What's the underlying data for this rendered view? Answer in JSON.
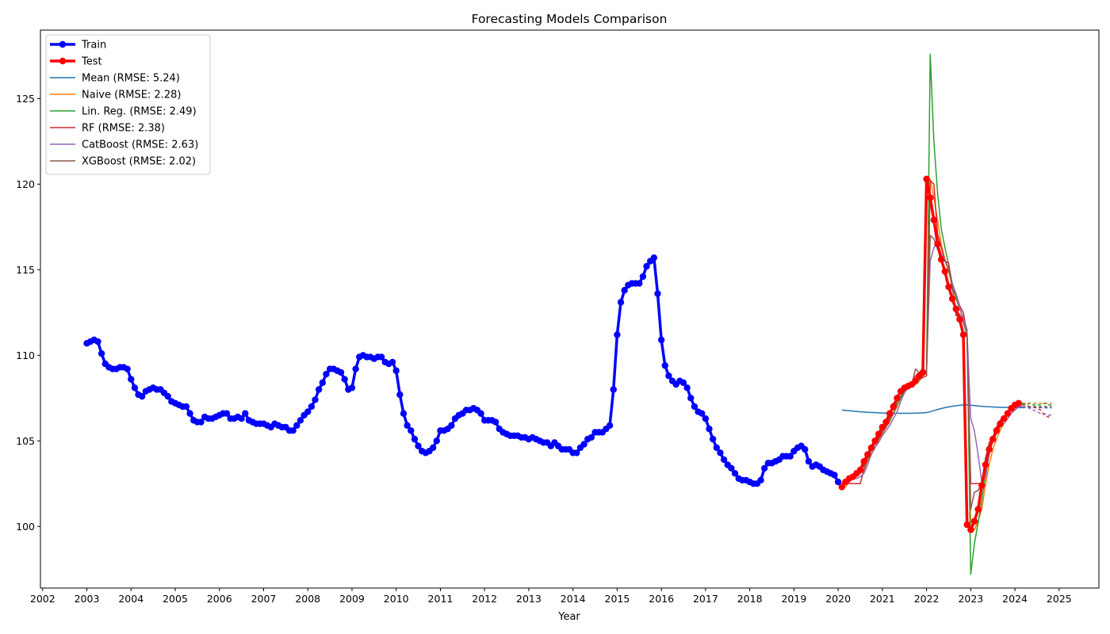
{
  "chart_data": {
    "type": "line",
    "title": "Forecasting Models Comparison",
    "xlabel": "Year",
    "ylabel": "",
    "xlim": [
      2001.95,
      2025.9
    ],
    "ylim": [
      96.4,
      129.0
    ],
    "x_ticks": [
      2002,
      2003,
      2004,
      2005,
      2006,
      2007,
      2008,
      2009,
      2010,
      2011,
      2012,
      2013,
      2014,
      2015,
      2016,
      2017,
      2018,
      2019,
      2020,
      2021,
      2022,
      2023,
      2024,
      2025
    ],
    "y_ticks": [
      100,
      105,
      110,
      115,
      120,
      125
    ],
    "grid": false,
    "legend_position": "top-left",
    "train": {
      "name": "Train",
      "color": "#0000ff",
      "x_start": 2003.0,
      "step": 0.08333,
      "values": [
        110.7,
        110.8,
        110.9,
        110.8,
        110.1,
        109.5,
        109.3,
        109.2,
        109.2,
        109.3,
        109.3,
        109.2,
        108.6,
        108.1,
        107.7,
        107.6,
        107.9,
        108.0,
        108.1,
        108.0,
        108.0,
        107.8,
        107.6,
        107.3,
        107.2,
        107.1,
        107.0,
        107.0,
        106.6,
        106.2,
        106.1,
        106.1,
        106.4,
        106.3,
        106.3,
        106.4,
        106.5,
        106.6,
        106.6,
        106.3,
        106.3,
        106.4,
        106.3,
        106.6,
        106.2,
        106.1,
        106.0,
        106.0,
        106.0,
        105.9,
        105.8,
        106.0,
        105.9,
        105.8,
        105.8,
        105.6,
        105.6,
        105.9,
        106.2,
        106.5,
        106.7,
        107.0,
        107.4,
        108.0,
        108.4,
        108.9,
        109.2,
        109.2,
        109.1,
        109.0,
        108.6,
        108.0,
        108.1,
        109.2,
        109.9,
        110.0,
        109.9,
        109.9,
        109.8,
        109.9,
        109.9,
        109.6,
        109.5,
        109.6,
        109.1,
        107.7,
        106.6,
        105.9,
        105.6,
        105.1,
        104.7,
        104.4,
        104.3,
        104.4,
        104.6,
        105.0,
        105.6,
        105.6,
        105.7,
        105.9,
        106.3,
        106.5,
        106.6,
        106.8,
        106.8,
        106.9,
        106.8,
        106.6,
        106.2,
        106.2,
        106.2,
        106.1,
        105.7,
        105.5,
        105.4,
        105.3,
        105.3,
        105.3,
        105.2,
        105.2,
        105.1,
        105.2,
        105.1,
        105.0,
        104.9,
        104.9,
        104.7,
        104.9,
        104.7,
        104.5,
        104.5,
        104.5,
        104.3,
        104.3,
        104.6,
        104.8,
        105.1,
        105.2,
        105.5,
        105.5,
        105.5,
        105.7,
        105.9,
        108.0,
        111.2,
        113.1,
        113.8,
        114.1,
        114.2,
        114.2,
        114.2,
        114.6,
        115.2,
        115.5,
        115.7,
        113.6,
        110.9,
        109.4,
        108.8,
        108.5,
        108.3,
        108.5,
        108.4,
        108.1,
        107.5,
        107.0,
        106.7,
        106.6,
        106.3,
        105.7,
        105.1,
        104.6,
        104.3,
        103.9,
        103.6,
        103.4,
        103.1,
        102.8,
        102.7,
        102.7,
        102.6,
        102.5,
        102.5,
        102.7,
        103.4,
        103.7,
        103.7,
        103.8,
        103.9,
        104.1,
        104.1,
        104.1,
        104.4,
        104.6,
        104.7,
        104.5,
        103.8,
        103.5,
        103.6,
        103.5,
        103.3,
        103.2,
        103.1,
        103.0,
        102.6
      ]
    },
    "test": {
      "name": "Test",
      "color": "#ff0000",
      "x_start": 2020.083,
      "step": 0.08333,
      "values": [
        102.3,
        102.6,
        102.8,
        102.9,
        103.1,
        103.3,
        103.8,
        104.2,
        104.6,
        105.0,
        105.4,
        105.8,
        106.1,
        106.6,
        107.0,
        107.5,
        107.9,
        108.1,
        108.2,
        108.3,
        108.5,
        108.8,
        109.0,
        120.3,
        119.2,
        117.9,
        116.5,
        115.6,
        114.9,
        114.0,
        113.3,
        112.7,
        112.1,
        111.2,
        100.1,
        99.8,
        100.3,
        101.0,
        102.4,
        103.6,
        104.5,
        105.1,
        105.6,
        106.0,
        106.3,
        106.6,
        106.9,
        107.1,
        107.2
      ]
    },
    "series": [
      {
        "name": "Mean (RMSE: 5.24)",
        "color": "#1f77b4",
        "x_start": 2020.083,
        "step": 0.08333,
        "tail_start": 49,
        "values": [
          106.8,
          106.78,
          106.76,
          106.74,
          106.72,
          106.7,
          106.69,
          106.67,
          106.66,
          106.65,
          106.64,
          106.63,
          106.62,
          106.62,
          106.61,
          106.61,
          106.61,
          106.61,
          106.61,
          106.61,
          106.62,
          106.63,
          106.64,
          106.65,
          106.7,
          106.77,
          106.83,
          106.89,
          106.94,
          106.98,
          107.02,
          107.05,
          107.08,
          107.1,
          107.1,
          107.08,
          107.06,
          107.04,
          107.02,
          107.0,
          106.99,
          106.98,
          106.97,
          106.96,
          106.96,
          106.95,
          106.95,
          106.95,
          106.94,
          106.94,
          106.94,
          106.94,
          106.94,
          106.94,
          106.94,
          106.93,
          106.93,
          106.93
        ]
      },
      {
        "name": "Naive (RMSE: 2.28)",
        "color": "#ff7f0e",
        "x_start": 2020.083,
        "step": 0.08333,
        "tail_start": 49,
        "values": [
          102.6,
          102.3,
          102.6,
          102.8,
          102.9,
          103.1,
          103.3,
          103.8,
          104.2,
          104.6,
          105.0,
          105.4,
          105.8,
          106.1,
          106.6,
          107.0,
          107.5,
          107.9,
          108.1,
          108.2,
          108.3,
          108.5,
          108.8,
          109.0,
          120.3,
          119.2,
          117.9,
          116.5,
          115.6,
          114.9,
          114.0,
          113.3,
          112.7,
          112.1,
          111.2,
          100.1,
          99.8,
          100.3,
          101.0,
          102.4,
          103.6,
          104.5,
          105.1,
          105.6,
          106.0,
          106.3,
          106.6,
          106.9,
          107.1,
          107.2,
          107.2,
          107.2,
          107.2,
          107.2,
          107.2,
          107.2,
          107.2,
          107.2
        ]
      },
      {
        "name": "Lin. Reg. (RMSE: 2.49)",
        "color": "#2ca02c",
        "x_start": 2020.083,
        "step": 0.08333,
        "tail_start": 49,
        "values": [
          102.5,
          102.5,
          102.8,
          103.0,
          103.1,
          103.3,
          103.5,
          103.9,
          104.4,
          104.8,
          105.1,
          105.5,
          105.9,
          106.2,
          106.6,
          107.1,
          107.5,
          107.9,
          108.1,
          108.2,
          108.3,
          108.5,
          108.8,
          109.0,
          127.6,
          122.5,
          119.5,
          117.4,
          116.3,
          115.3,
          114.2,
          113.4,
          112.7,
          112.2,
          111.5,
          97.2,
          99.0,
          100.2,
          101.5,
          103.0,
          104.2,
          105.0,
          105.6,
          106.0,
          106.3,
          106.6,
          106.9,
          107.1,
          107.2,
          107.2,
          107.1,
          107.2,
          107.1,
          107.1,
          107.1,
          107.2,
          107.1,
          107.1
        ]
      },
      {
        "name": "RF (RMSE: 2.38)",
        "color": "#d62728",
        "x_start": 2020.083,
        "step": 0.08333,
        "tail_start": 49,
        "values": [
          102.5,
          102.6,
          102.5,
          102.5,
          102.5,
          102.5,
          103.3,
          104.0,
          104.6,
          104.8,
          105.1,
          105.7,
          106.0,
          106.4,
          107.2,
          107.4,
          108.0,
          108.0,
          108.1,
          108.3,
          108.8,
          108.6,
          108.7,
          108.8,
          120.2,
          120.0,
          117.1,
          116.3,
          115.5,
          115.4,
          113.8,
          113.6,
          112.9,
          112.5,
          111.2,
          102.5,
          102.5,
          102.5,
          102.5,
          103.8,
          104.9,
          105.2,
          105.8,
          106.2,
          106.4,
          106.5,
          106.8,
          106.8,
          107.0,
          107.0,
          107.0,
          107.0,
          107.0,
          106.9,
          106.8,
          106.5,
          106.4,
          106.4
        ]
      },
      {
        "name": "CatBoost (RMSE: 2.63)",
        "color": "#9467bd",
        "x_start": 2020.083,
        "step": 0.08333,
        "tail_start": 49,
        "values": [
          102.5,
          102.5,
          102.6,
          102.8,
          102.8,
          102.9,
          103.1,
          103.6,
          104.2,
          104.6,
          104.9,
          105.3,
          105.6,
          105.9,
          106.3,
          106.7,
          107.3,
          107.8,
          108.1,
          108.2,
          108.5,
          108.9,
          108.9,
          109.0,
          115.5,
          116.3,
          116.6,
          115.9,
          115.6,
          115.0,
          114.2,
          113.6,
          112.8,
          112.1,
          111.4,
          106.3,
          105.6,
          104.2,
          102.6,
          102.8,
          104.2,
          105.0,
          105.4,
          105.8,
          106.0,
          106.3,
          106.6,
          106.8,
          107.0,
          107.0,
          107.0,
          106.9,
          106.8,
          106.7,
          106.6,
          106.6,
          106.5,
          106.5
        ]
      },
      {
        "name": "XGBoost (RMSE: 2.02)",
        "color": "#8c564b",
        "x_start": 2020.083,
        "step": 0.08333,
        "tail_start": 49,
        "values": [
          102.4,
          102.7,
          102.9,
          103.0,
          103.1,
          103.3,
          103.6,
          104.1,
          104.5,
          104.8,
          105.2,
          105.5,
          105.8,
          106.3,
          106.6,
          107.3,
          107.6,
          108.0,
          108.1,
          108.3,
          109.2,
          109.0,
          108.9,
          109.1,
          117.0,
          116.8,
          116.2,
          115.7,
          115.5,
          115.1,
          114.0,
          112.3,
          112.4,
          111.9,
          111.2,
          101.0,
          102.0,
          102.1,
          102.5,
          104.0,
          104.8,
          105.2,
          105.6,
          106.2,
          106.3,
          106.6,
          106.8,
          107.0,
          107.1,
          107.1,
          107.1,
          107.0,
          107.0,
          107.0,
          107.0,
          107.0,
          107.0,
          107.0
        ]
      }
    ]
  }
}
